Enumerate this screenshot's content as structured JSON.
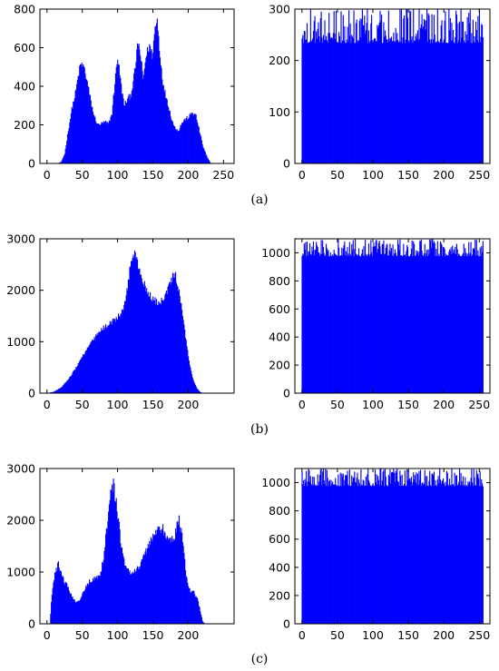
{
  "figure": {
    "captions": [
      "(a)",
      "(b)",
      "(c)"
    ]
  },
  "colors": {
    "bar": "#0000ff",
    "axis": "#000000",
    "background": "#ffffff"
  },
  "chart_data": [
    {
      "type": "bar",
      "panel": "a-original",
      "xlim": [
        -10,
        265
      ],
      "ylim": [
        0,
        800
      ],
      "xticks": [
        0,
        50,
        100,
        150,
        200,
        250
      ],
      "yticks": [
        0,
        200,
        400,
        600,
        800
      ],
      "profile": [
        [
          0,
          0
        ],
        [
          15,
          0
        ],
        [
          20,
          8
        ],
        [
          25,
          50
        ],
        [
          30,
          170
        ],
        [
          35,
          280
        ],
        [
          40,
          360
        ],
        [
          45,
          470
        ],
        [
          48,
          515
        ],
        [
          52,
          500
        ],
        [
          57,
          420
        ],
        [
          62,
          320
        ],
        [
          67,
          240
        ],
        [
          72,
          200
        ],
        [
          77,
          205
        ],
        [
          82,
          215
        ],
        [
          87,
          205
        ],
        [
          92,
          260
        ],
        [
          96,
          420
        ],
        [
          100,
          555
        ],
        [
          104,
          430
        ],
        [
          109,
          300
        ],
        [
          114,
          330
        ],
        [
          119,
          360
        ],
        [
          124,
          470
        ],
        [
          129,
          630
        ],
        [
          133,
          540
        ],
        [
          136,
          430
        ],
        [
          140,
          555
        ],
        [
          145,
          610
        ],
        [
          149,
          560
        ],
        [
          153,
          700
        ],
        [
          156,
          745
        ],
        [
          160,
          560
        ],
        [
          165,
          390
        ],
        [
          170,
          330
        ],
        [
          175,
          250
        ],
        [
          180,
          190
        ],
        [
          186,
          170
        ],
        [
          191,
          210
        ],
        [
          196,
          230
        ],
        [
          201,
          240
        ],
        [
          206,
          265
        ],
        [
          211,
          245
        ],
        [
          216,
          165
        ],
        [
          221,
          85
        ],
        [
          227,
          30
        ],
        [
          232,
          0
        ],
        [
          255,
          0
        ]
      ],
      "noise": 0.05,
      "spiky": false
    },
    {
      "type": "bar",
      "panel": "a-encrypted",
      "xlim": [
        -10,
        265
      ],
      "ylim": [
        0,
        300
      ],
      "xticks": [
        0,
        50,
        100,
        150,
        200,
        250
      ],
      "yticks": [
        0,
        100,
        200,
        300
      ],
      "profile": [
        [
          0,
          255
        ],
        [
          255,
          255
        ]
      ],
      "noise": 0,
      "spiky": true,
      "spike_min": 234,
      "spike_max": 302
    },
    {
      "type": "bar",
      "panel": "b-original",
      "xlim": [
        -10,
        265
      ],
      "ylim": [
        0,
        3000
      ],
      "xticks": [
        0,
        50,
        100,
        150,
        200
      ],
      "yticks": [
        0,
        1000,
        2000,
        3000
      ],
      "profile": [
        [
          0,
          0
        ],
        [
          5,
          15
        ],
        [
          10,
          30
        ],
        [
          20,
          110
        ],
        [
          30,
          270
        ],
        [
          40,
          470
        ],
        [
          50,
          720
        ],
        [
          60,
          930
        ],
        [
          70,
          1120
        ],
        [
          80,
          1270
        ],
        [
          90,
          1370
        ],
        [
          100,
          1470
        ],
        [
          108,
          1620
        ],
        [
          114,
          2050
        ],
        [
          118,
          2500
        ],
        [
          122,
          2720
        ],
        [
          126,
          2650
        ],
        [
          130,
          2400
        ],
        [
          136,
          2170
        ],
        [
          142,
          1980
        ],
        [
          150,
          1810
        ],
        [
          158,
          1760
        ],
        [
          165,
          1800
        ],
        [
          172,
          2050
        ],
        [
          178,
          2250
        ],
        [
          182,
          2270
        ],
        [
          187,
          1950
        ],
        [
          192,
          1500
        ],
        [
          197,
          1000
        ],
        [
          202,
          560
        ],
        [
          207,
          260
        ],
        [
          212,
          100
        ],
        [
          217,
          20
        ],
        [
          222,
          0
        ],
        [
          255,
          0
        ]
      ],
      "noise": 0.04,
      "spiky": false
    },
    {
      "type": "bar",
      "panel": "b-encrypted",
      "xlim": [
        -10,
        265
      ],
      "ylim": [
        0,
        1100
      ],
      "xticks": [
        0,
        50,
        100,
        150,
        200,
        250
      ],
      "yticks": [
        0,
        200,
        400,
        600,
        800,
        1000
      ],
      "profile": [
        [
          0,
          1025
        ],
        [
          255,
          1025
        ]
      ],
      "noise": 0,
      "spiky": true,
      "spike_min": 975,
      "spike_max": 1100
    },
    {
      "type": "bar",
      "panel": "c-original",
      "xlim": [
        -10,
        265
      ],
      "ylim": [
        0,
        3000
      ],
      "xticks": [
        0,
        50,
        100,
        150,
        200
      ],
      "yticks": [
        0,
        1000,
        2000,
        3000
      ],
      "profile": [
        [
          0,
          0
        ],
        [
          4,
          0
        ],
        [
          6,
          400
        ],
        [
          9,
          820
        ],
        [
          13,
          1050
        ],
        [
          16,
          1150
        ],
        [
          20,
          980
        ],
        [
          25,
          800
        ],
        [
          30,
          700
        ],
        [
          35,
          550
        ],
        [
          40,
          420
        ],
        [
          45,
          430
        ],
        [
          50,
          560
        ],
        [
          55,
          700
        ],
        [
          60,
          820
        ],
        [
          65,
          850
        ],
        [
          70,
          880
        ],
        [
          75,
          920
        ],
        [
          80,
          1300
        ],
        [
          85,
          1900
        ],
        [
          90,
          2450
        ],
        [
          94,
          2690
        ],
        [
          98,
          2350
        ],
        [
          103,
          1750
        ],
        [
          108,
          1250
        ],
        [
          113,
          1060
        ],
        [
          118,
          1010
        ],
        [
          123,
          1000
        ],
        [
          128,
          1070
        ],
        [
          133,
          1150
        ],
        [
          138,
          1350
        ],
        [
          143,
          1500
        ],
        [
          148,
          1630
        ],
        [
          153,
          1750
        ],
        [
          158,
          1820
        ],
        [
          163,
          1860
        ],
        [
          168,
          1680
        ],
        [
          173,
          1620
        ],
        [
          178,
          1610
        ],
        [
          183,
          1820
        ],
        [
          187,
          2030
        ],
        [
          190,
          1800
        ],
        [
          194,
          1300
        ],
        [
          198,
          850
        ],
        [
          203,
          640
        ],
        [
          208,
          600
        ],
        [
          213,
          480
        ],
        [
          217,
          250
        ],
        [
          220,
          60
        ],
        [
          223,
          0
        ],
        [
          255,
          0
        ]
      ],
      "noise": 0.06,
      "spiky": false
    },
    {
      "type": "bar",
      "panel": "c-encrypted",
      "xlim": [
        -10,
        265
      ],
      "ylim": [
        0,
        1100
      ],
      "xticks": [
        0,
        50,
        100,
        150,
        200,
        250
      ],
      "yticks": [
        0,
        200,
        400,
        600,
        800,
        1000
      ],
      "profile": [
        [
          0,
          1025
        ],
        [
          255,
          1025
        ]
      ],
      "noise": 0,
      "spiky": true,
      "spike_min": 975,
      "spike_max": 1100
    }
  ]
}
